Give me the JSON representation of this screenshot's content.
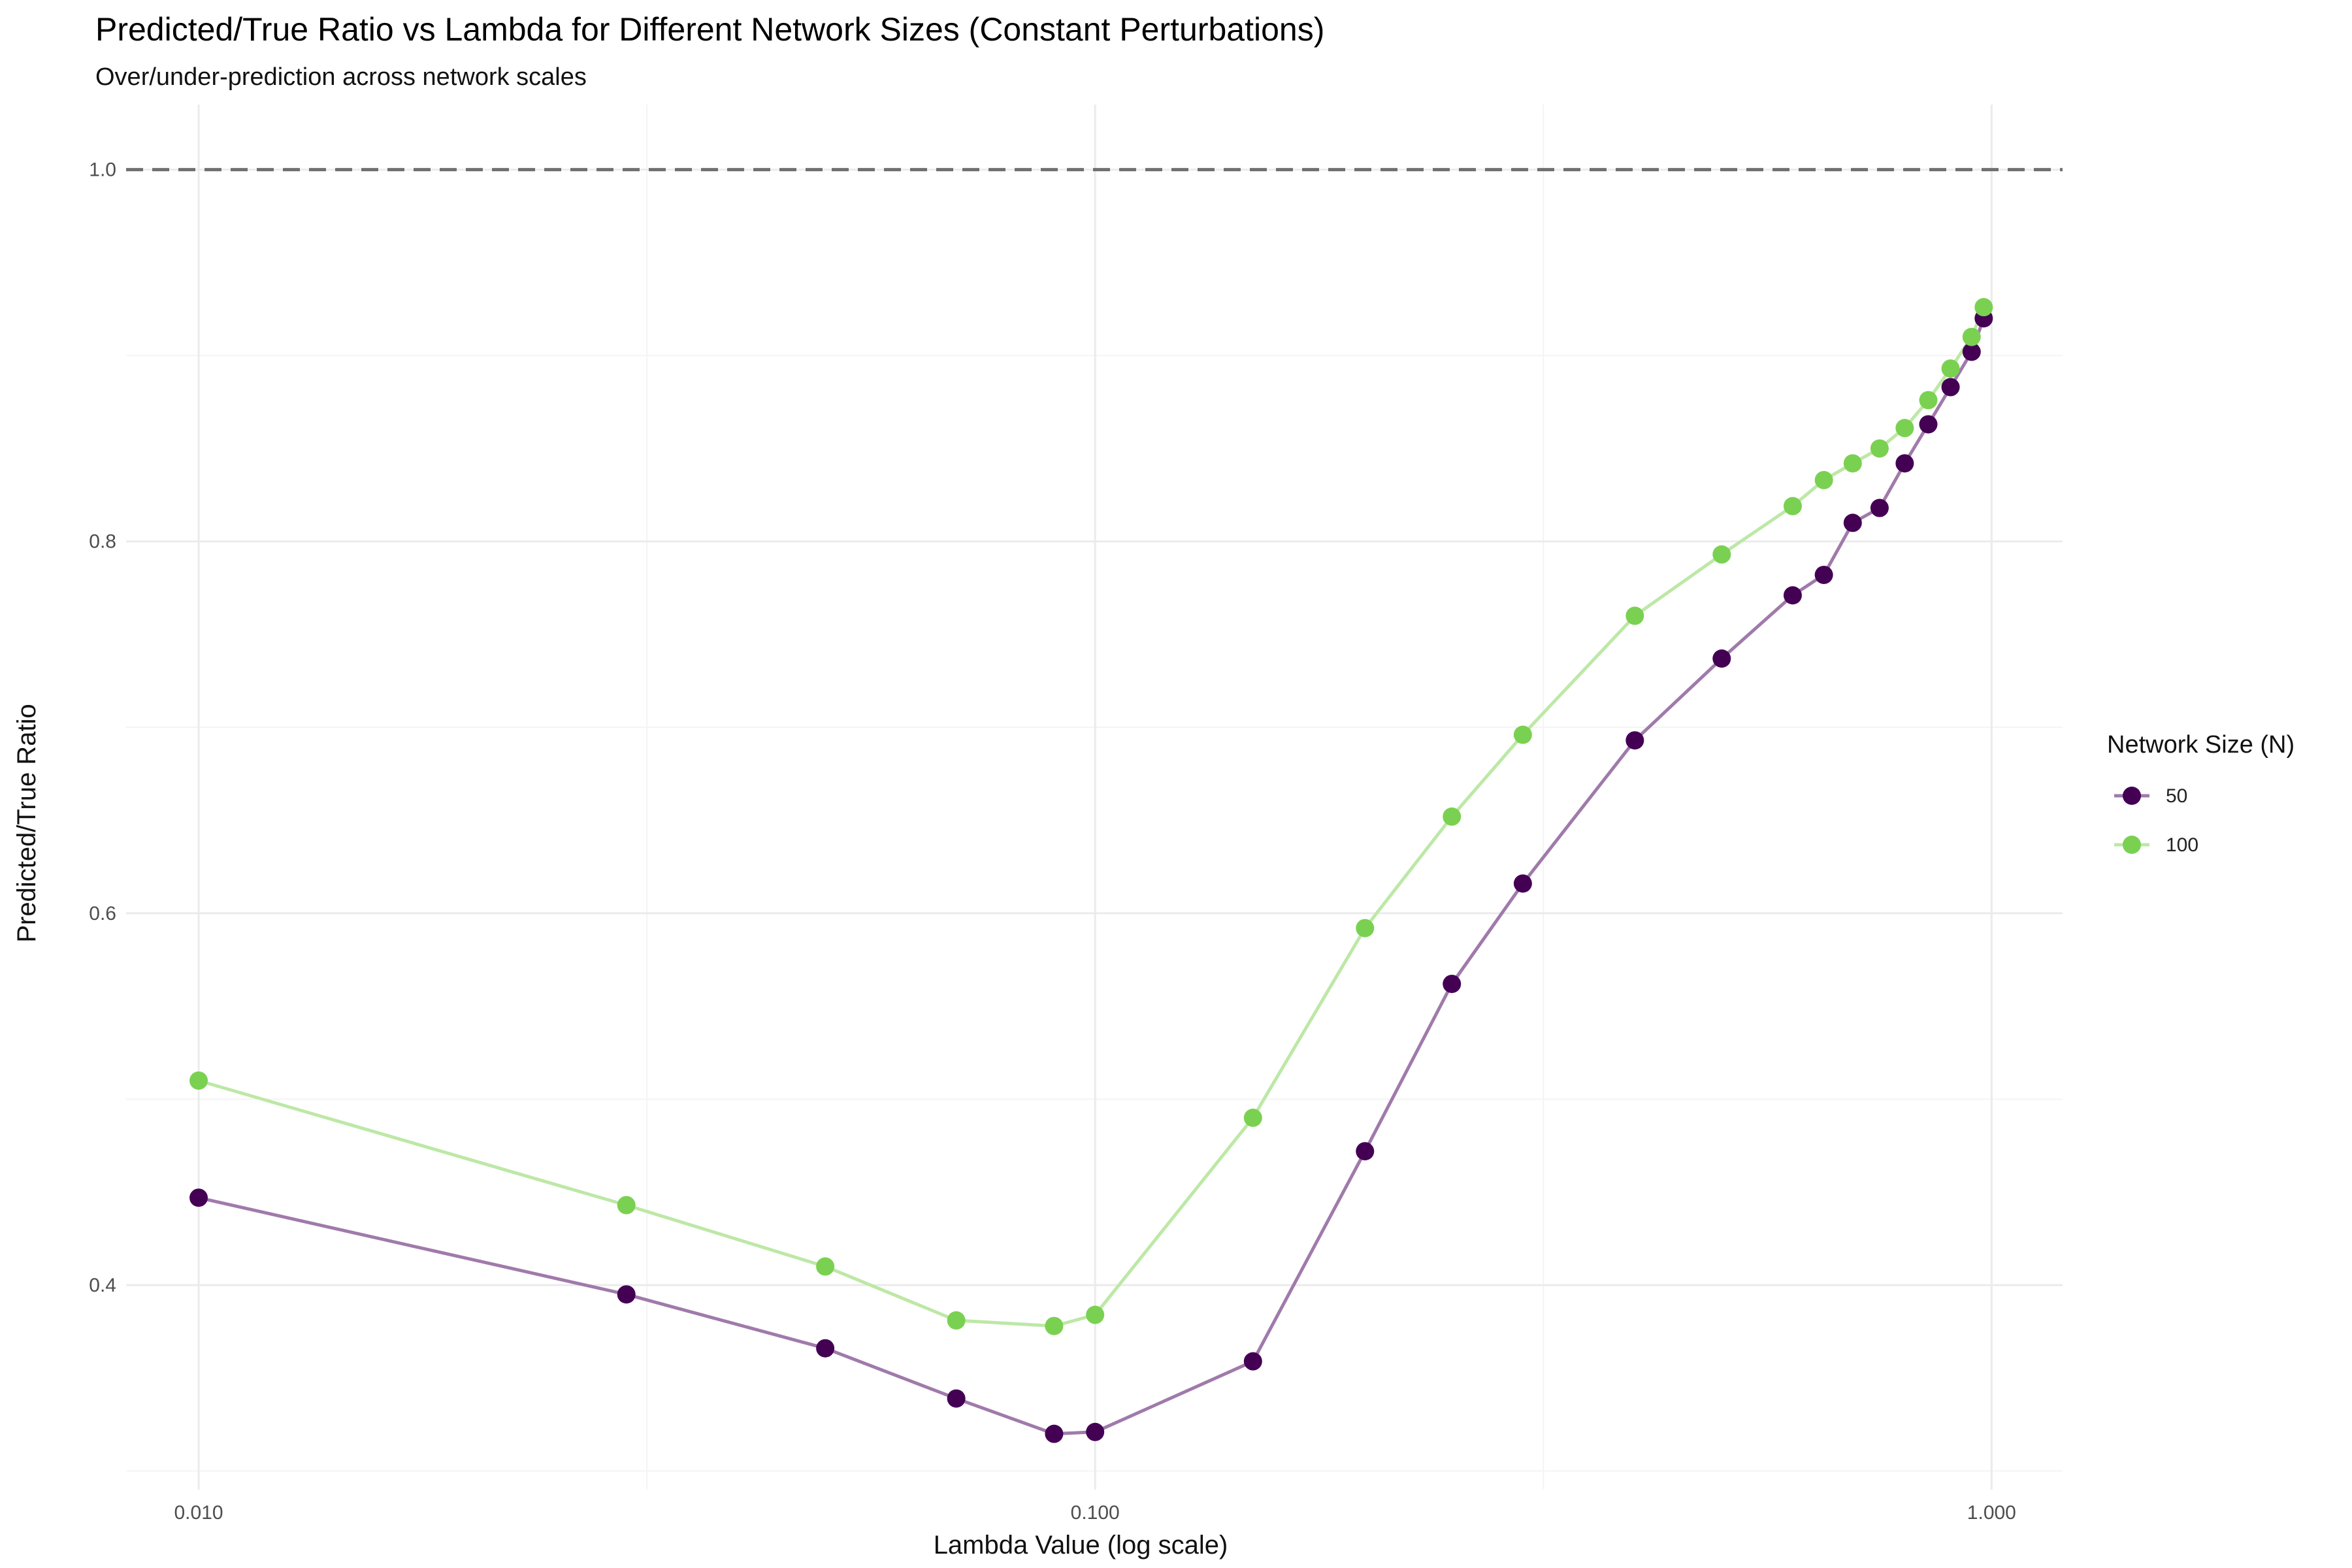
{
  "chart_data": {
    "type": "line",
    "title": "Predicted/True Ratio vs Lambda for Different Network Sizes (Constant Perturbations)",
    "subtitle": "Over/under-prediction across network scales",
    "xlabel": "Lambda Value (log scale)",
    "ylabel": "Predicted/True Ratio",
    "x_scale": "log",
    "xlim": [
      0.0083,
      1.2
    ],
    "ylim": [
      0.29,
      1.035
    ],
    "x_ticks": [
      0.01,
      0.1,
      1.0
    ],
    "x_tick_labels": [
      "0.010",
      "0.100",
      "1.000"
    ],
    "y_ticks": [
      0.4,
      0.6,
      0.8,
      1.0
    ],
    "y_tick_labels": [
      "0.4",
      "0.6",
      "0.8",
      "1.0"
    ],
    "grid": true,
    "reference_line": {
      "y": 1.0,
      "style": "dashed",
      "color": "#707070"
    },
    "legend": {
      "title": "Network Size (N)",
      "position": "right"
    },
    "series": [
      {
        "name": "50",
        "point_color": "#440154",
        "line_color": "#a07aab",
        "x": [
          0.01,
          0.03,
          0.05,
          0.07,
          0.09,
          0.1,
          0.15,
          0.2,
          0.25,
          0.3,
          0.4,
          0.5,
          0.6,
          0.65,
          0.7,
          0.75,
          0.8,
          0.85,
          0.9,
          0.95,
          0.98
        ],
        "y": [
          0.447,
          0.395,
          0.366,
          0.339,
          0.32,
          0.321,
          0.359,
          0.472,
          0.562,
          0.616,
          0.693,
          0.737,
          0.771,
          0.782,
          0.81,
          0.818,
          0.842,
          0.863,
          0.883,
          0.902,
          0.92
        ]
      },
      {
        "name": "100",
        "point_color": "#7ad151",
        "line_color": "#bde8a6",
        "x": [
          0.01,
          0.03,
          0.05,
          0.07,
          0.09,
          0.1,
          0.15,
          0.2,
          0.25,
          0.3,
          0.4,
          0.5,
          0.6,
          0.65,
          0.7,
          0.75,
          0.8,
          0.85,
          0.9,
          0.95,
          0.98
        ],
        "y": [
          0.51,
          0.443,
          0.41,
          0.381,
          0.378,
          0.384,
          0.49,
          0.592,
          0.652,
          0.696,
          0.76,
          0.793,
          0.819,
          0.833,
          0.842,
          0.85,
          0.861,
          0.876,
          0.893,
          0.91,
          0.926
        ]
      }
    ]
  }
}
